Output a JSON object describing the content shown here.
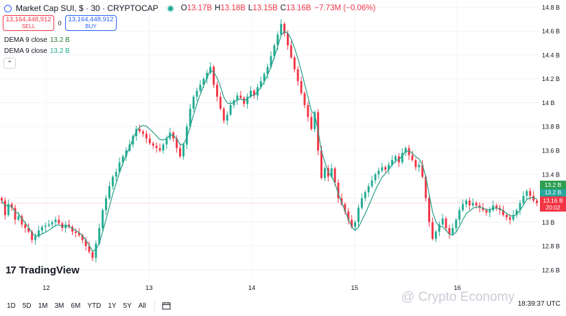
{
  "header": {
    "title": "Market Cap SUI, $ · 30 · CRYPTOCAP",
    "o_label": "O",
    "o_value": "13.17B",
    "h_label": "H",
    "h_value": "13.18B",
    "l_label": "L",
    "l_value": "13.15B",
    "c_label": "C",
    "c_value": "13.16B",
    "change": "−7.73M (−0.06%)"
  },
  "trade": {
    "sell_value": "13,164,448,912",
    "sell_label": "SELL",
    "spread": "0",
    "buy_value": "13,164,448,912",
    "buy_label": "BUY"
  },
  "indicators": [
    {
      "name": "DEMA 9 close",
      "value": "13.2 B",
      "color": "#2e7d32"
    },
    {
      "name": "DEMA 9 close",
      "value": "13.2 B",
      "color": "#26a69a"
    }
  ],
  "logo_text": "TradingView",
  "ranges": [
    "1D",
    "5D",
    "1M",
    "3M",
    "6M",
    "YTD",
    "1Y",
    "5Y",
    "All"
  ],
  "clock": "18:39:37 UTC",
  "watermark": "@ Crypto Economy",
  "price_tags": {
    "dema1": "13.2 B",
    "dema2": "13.2 B",
    "last_price": "13.16 B",
    "countdown": "20:02"
  },
  "colors": {
    "up": "#22ab94",
    "down": "#f23645",
    "dema1": "#2e7d32",
    "dema2": "#26a69a"
  },
  "chart_data": {
    "type": "candlestick",
    "title": "Market Cap SUI, $ · 30 · CRYPTOCAP",
    "y_ticks": [
      "12.6 B",
      "12.8 B",
      "13 B",
      "13.2 B",
      "13.4 B",
      "13.6 B",
      "13.8 B",
      "14 B",
      "14.2 B",
      "14.4 B",
      "14.6 B",
      "14.8 B"
    ],
    "y_tick_values": [
      12.6,
      12.8,
      13.0,
      13.2,
      13.4,
      13.6,
      13.8,
      14.0,
      14.2,
      14.4,
      14.6,
      14.8
    ],
    "ylim": [
      12.53,
      14.86
    ],
    "x_ticks": [
      {
        "label": "12",
        "day": 12
      },
      {
        "label": "13",
        "day": 13
      },
      {
        "label": "14",
        "day": 14
      },
      {
        "label": "15",
        "day": 15
      },
      {
        "label": "16",
        "day": 16
      }
    ],
    "xlim": [
      11.55,
      16.79
    ],
    "last_price": 13.16,
    "series": [
      {
        "name": "Market Cap SUI",
        "close": [
          13.18,
          13.06,
          13.15,
          13.12,
          13.02,
          13.05,
          12.98,
          12.95,
          12.92,
          12.85,
          12.88,
          12.93,
          12.96,
          12.97,
          12.98,
          13.0,
          13.02,
          12.99,
          12.95,
          12.98,
          12.96,
          12.92,
          12.91,
          12.89,
          12.85,
          12.8,
          12.75,
          12.7,
          12.82,
          12.95,
          13.1,
          13.2,
          13.3,
          13.38,
          13.42,
          13.5,
          13.55,
          13.6,
          13.65,
          13.72,
          13.78,
          13.76,
          13.74,
          13.7,
          13.66,
          13.64,
          13.62,
          13.6,
          13.65,
          13.7,
          13.75,
          13.7,
          13.62,
          13.55,
          13.65,
          13.8,
          13.95,
          14.05,
          14.1,
          14.15,
          14.2,
          14.25,
          14.3,
          14.15,
          14.05,
          13.95,
          13.85,
          13.9,
          13.98,
          14.02,
          14.06,
          14.04,
          13.99,
          14.05,
          14.1,
          14.06,
          14.13,
          14.18,
          14.24,
          14.3,
          14.39,
          14.48,
          14.57,
          14.66,
          14.58,
          14.48,
          14.38,
          14.28,
          14.18,
          14.08,
          13.98,
          13.88,
          13.78,
          13.92,
          13.6,
          13.37,
          13.45,
          13.38,
          13.45,
          13.33,
          13.2,
          13.15,
          13.09,
          13.02,
          12.96,
          13.0,
          13.12,
          13.2,
          13.25,
          13.3,
          13.35,
          13.4,
          13.43,
          13.46,
          13.44,
          13.48,
          13.52,
          13.55,
          13.5,
          13.58,
          13.62,
          13.56,
          13.52,
          13.46,
          13.48,
          13.38,
          13.2,
          13.0,
          12.86,
          12.92,
          12.98,
          13.03,
          12.95,
          12.9,
          12.95,
          13.02,
          13.1,
          13.15,
          13.18,
          13.14,
          13.16,
          13.14,
          13.12,
          13.1,
          13.08,
          13.1,
          13.14,
          13.12,
          13.1,
          13.06,
          13.04,
          13.02,
          13.06,
          13.1,
          13.16,
          13.22,
          13.26,
          13.22,
          13.18,
          13.16
        ]
      }
    ]
  }
}
